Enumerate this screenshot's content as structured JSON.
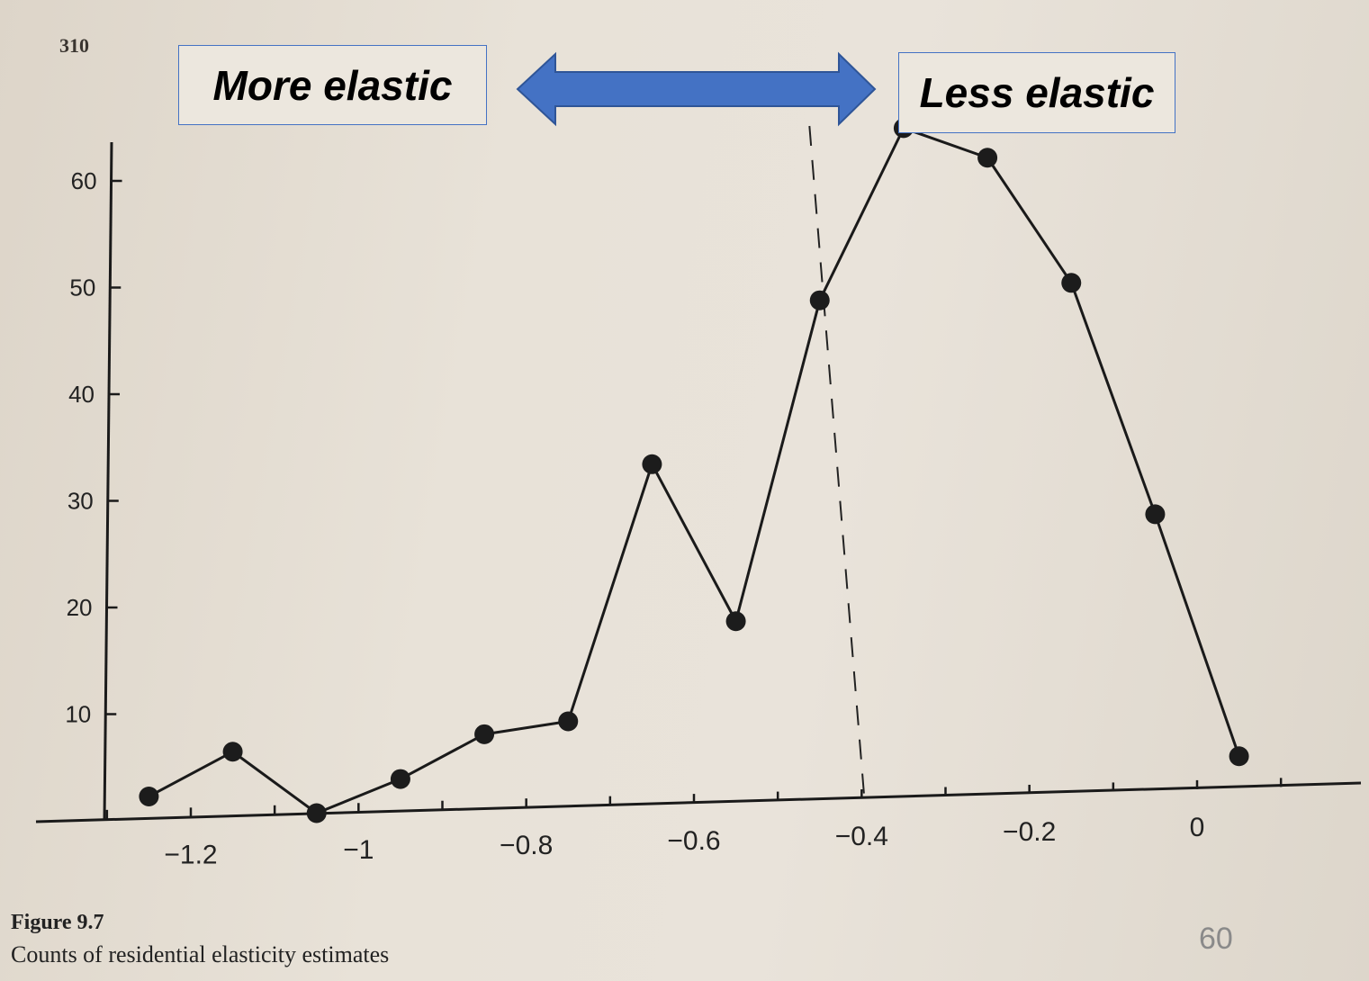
{
  "page": {
    "page_number": "310",
    "slide_number": "60"
  },
  "annotations": {
    "more_elastic": "More elastic",
    "less_elastic": "Less elastic",
    "arrow_color": "#4472c4"
  },
  "figure": {
    "number": "Figure 9.7",
    "caption": "Counts of residential elasticity estimates"
  },
  "chart_data": {
    "type": "line",
    "title": "",
    "xlabel": "",
    "ylabel": "",
    "x": [
      -1.25,
      -1.15,
      -1.05,
      -0.95,
      -0.85,
      -0.75,
      -0.65,
      -0.55,
      -0.45,
      -0.35,
      -0.25,
      -0.15,
      -0.05,
      0.05
    ],
    "values": [
      2,
      6,
      0,
      3,
      7,
      8,
      32,
      17,
      47,
      63,
      60,
      48,
      26,
      3
    ],
    "xlim": [
      -1.35,
      0.15
    ],
    "ylim": [
      0,
      65
    ],
    "xticks": [
      -1.2,
      -1,
      -0.8,
      -0.6,
      -0.4,
      -0.2,
      0
    ],
    "xtick_labels": [
      "−1.2",
      "−1",
      "−0.8",
      "−0.6",
      "−0.4",
      "−0.2",
      "0"
    ],
    "yticks": [
      10,
      20,
      30,
      40,
      50,
      60
    ],
    "ytick_labels": [
      "10",
      "20",
      "30",
      "40",
      "50",
      "60"
    ],
    "reference_line_x": -0.4,
    "grid": false,
    "markers": true
  }
}
